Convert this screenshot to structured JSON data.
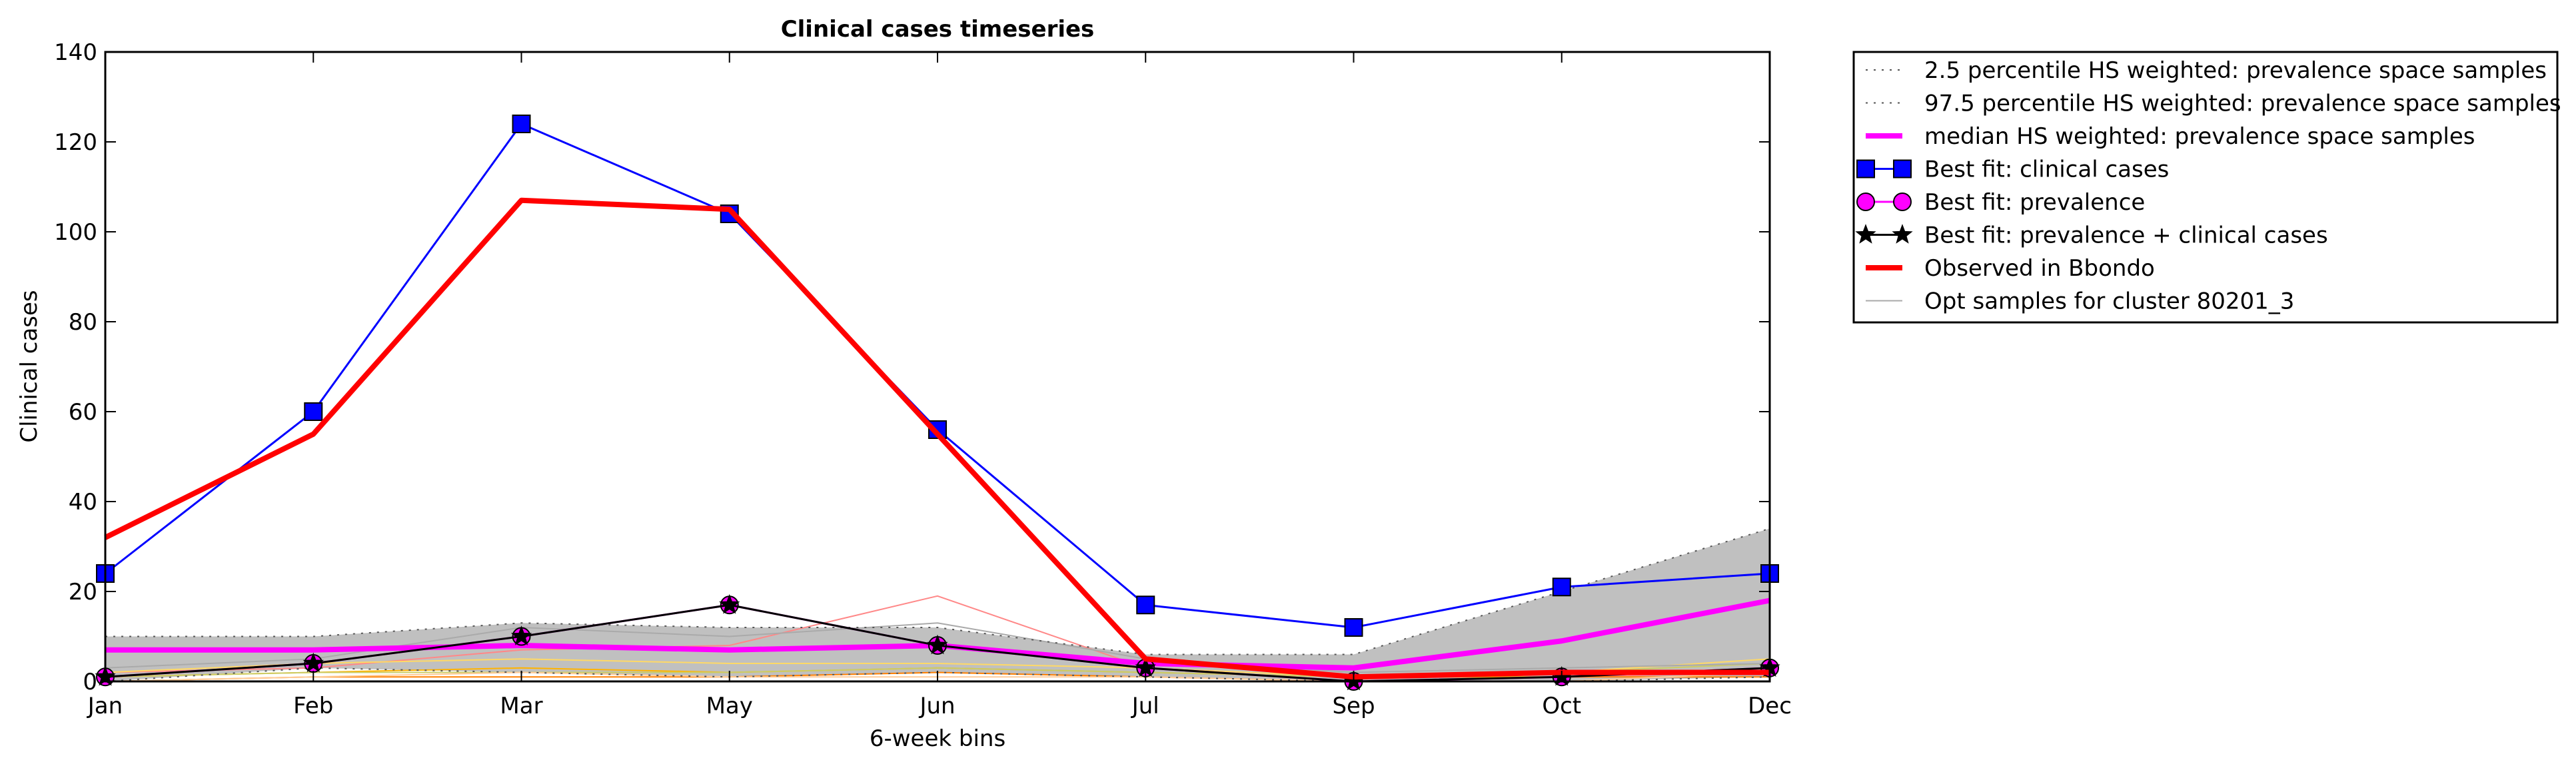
{
  "chart_data": {
    "type": "line",
    "title": "Clinical cases timeseries",
    "xlabel": "6-week bins",
    "ylabel": "Clinical cases",
    "ylim": [
      0,
      140
    ],
    "yticks": [
      "0",
      "20",
      "40",
      "60",
      "80",
      "100",
      "120",
      "140"
    ],
    "categories": [
      "Jan",
      "Feb",
      "Mar",
      "May",
      "Jun",
      "Jul",
      "Sep",
      "Oct",
      "Dec"
    ],
    "grid": false,
    "legend_position": "outside-right",
    "band": {
      "name": "2.5-97.5 percentile HS weighted band",
      "lower": [
        0,
        3,
        2,
        1,
        2,
        1,
        0,
        0,
        1
      ],
      "upper": [
        10,
        10,
        13,
        12,
        12,
        6,
        6,
        20,
        34
      ],
      "fill": "#c0c0c0"
    },
    "series": [
      {
        "name": "2.5 percentile HS weighted: prevalence space samples",
        "style": "dotted",
        "color": "#555555",
        "values": [
          0,
          3,
          2,
          1,
          2,
          1,
          0,
          0,
          1
        ]
      },
      {
        "name": "97.5 percentile HS weighted: prevalence space samples",
        "style": "dotted",
        "color": "#555555",
        "values": [
          10,
          10,
          13,
          12,
          12,
          6,
          6,
          20,
          34
        ]
      },
      {
        "name": "median HS weighted: prevalence space samples",
        "style": "solid-thick",
        "color": "#ff00ff",
        "values": [
          7,
          7,
          8,
          7,
          8,
          4,
          3,
          9,
          18
        ]
      },
      {
        "name": "Best fit: clinical cases",
        "style": "solid",
        "color": "#0000ff",
        "marker": "square",
        "values": [
          24,
          60,
          124,
          104,
          56,
          17,
          12,
          21,
          24
        ]
      },
      {
        "name": "Best fit: prevalence",
        "style": "solid",
        "color": "#ff00ff",
        "marker": "circle",
        "values": [
          1,
          4,
          10,
          17,
          8,
          3,
          0,
          1,
          3
        ]
      },
      {
        "name": "Best fit: prevalence + clinical cases",
        "style": "solid",
        "color": "#000000",
        "marker": "star",
        "values": [
          1,
          4,
          10,
          17,
          8,
          3,
          0,
          1,
          3
        ]
      },
      {
        "name": "Observed in Bbondo",
        "style": "solid-thick",
        "color": "#ff0000",
        "values": [
          32,
          55,
          107,
          105,
          55,
          5,
          1,
          2,
          2
        ]
      },
      {
        "name": "Opt samples for cluster 80201_3",
        "style": "solid-thin",
        "color": "#aaaaaa",
        "values": [
          3,
          5,
          12,
          10,
          13,
          5,
          2,
          3,
          4
        ]
      }
    ],
    "extra_sample_lines": [
      {
        "color": "#ff8888",
        "values": [
          2,
          3,
          7,
          8,
          19,
          3,
          0,
          1,
          2
        ]
      },
      {
        "color": "#ffb300",
        "values": [
          1,
          2,
          3,
          2,
          3,
          2,
          1,
          1,
          3
        ]
      },
      {
        "color": "#ffd966",
        "values": [
          2,
          4,
          5,
          4,
          4,
          3,
          1,
          2,
          5
        ]
      },
      {
        "color": "#ff7f00",
        "values": [
          0,
          1,
          1,
          1,
          2,
          1,
          0,
          1,
          1
        ]
      },
      {
        "color": "#cccc66",
        "values": [
          1,
          2,
          2,
          2,
          3,
          2,
          1,
          2,
          4
        ]
      },
      {
        "color": "#ffcc99",
        "values": [
          0,
          1,
          2,
          1,
          1,
          1,
          0,
          0,
          2
        ]
      }
    ]
  }
}
